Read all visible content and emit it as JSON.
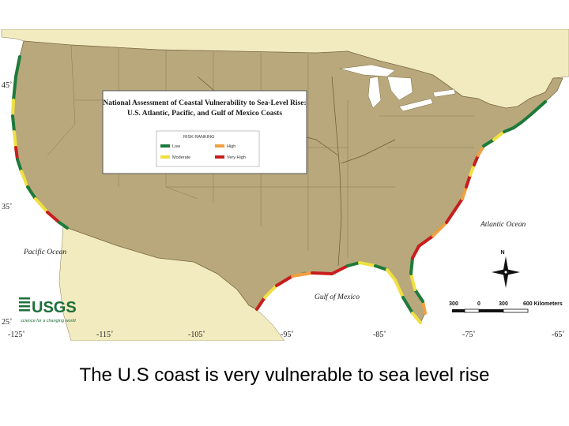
{
  "legend": {
    "title_line1": "National Assessment of Coastal Vulnerability to Sea-Level Rise:",
    "title_line2": "U.S. Atlantic, Pacific, and Gulf of Mexico Coasts",
    "heading": "RISK RANKING",
    "items": [
      {
        "label": "Low",
        "color": "#1e7a3a"
      },
      {
        "label": "High",
        "color": "#f0a040"
      },
      {
        "label": "Moderate",
        "color": "#f0e040"
      },
      {
        "label": "Very High",
        "color": "#c81e1e"
      }
    ]
  },
  "latitudes": [
    "45˚",
    "35˚",
    "25˚"
  ],
  "longitudes": [
    "-125˚",
    "-115˚",
    "-105˚",
    "-95˚",
    "-85˚",
    "-75˚",
    "-65˚"
  ],
  "water_labels": {
    "pacific": "Pacific Ocean",
    "atlantic": "Atlantic Ocean",
    "gulf": "Gulf of Mexico"
  },
  "scale": {
    "ticks": [
      "300",
      "0",
      "300",
      "600 Kilometers"
    ]
  },
  "north": "N",
  "logo": {
    "name": "USGS",
    "tagline": "science for a changing world"
  },
  "colors": {
    "land_us": "#b8a87c",
    "land_other": "#f2ebc0",
    "water": "#ffffff"
  },
  "caption": "The U.S coast is very vulnerable to sea level rise"
}
